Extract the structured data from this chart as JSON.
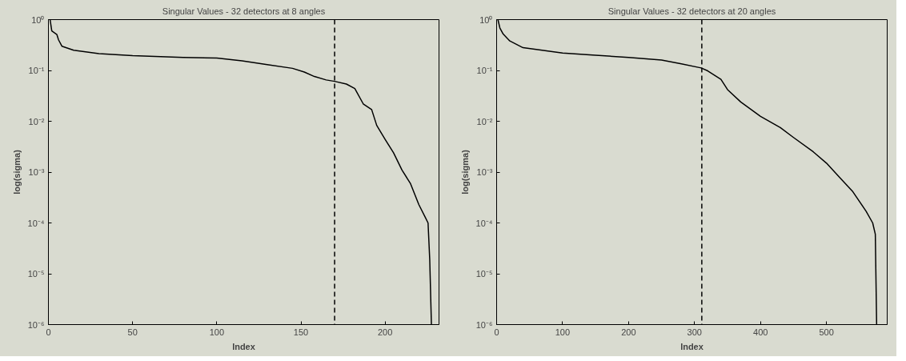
{
  "chart_data": [
    {
      "type": "line",
      "title": "Singular Values - 32 detectors at 8 angles",
      "xlabel": "Index",
      "ylabel": "log(sigma)",
      "log": "y",
      "grid": false,
      "line_style": "solid",
      "xlim": [
        0,
        232
      ],
      "xticks": [
        0,
        50,
        100,
        150,
        200
      ],
      "ylim": [
        1e-06,
        1
      ],
      "yticks": [
        {
          "value": 1e-06,
          "label": "10⁻⁶"
        },
        {
          "value": 1e-05,
          "label": "10⁻⁵"
        },
        {
          "value": 0.0001,
          "label": "10⁻⁴"
        },
        {
          "value": 0.001,
          "label": "10⁻³"
        },
        {
          "value": 0.01,
          "label": "10⁻²"
        },
        {
          "value": 0.1,
          "label": "10⁻¹"
        },
        {
          "value": 1,
          "label": "10⁰"
        }
      ],
      "ref_lines": [
        {
          "axis": "x",
          "value": 170,
          "line_style": "dashed",
          "color": "#000000"
        }
      ],
      "series": [
        {
          "color": "#000000",
          "x": [
            1,
            2,
            5,
            6,
            8,
            15,
            30,
            50,
            80,
            100,
            115,
            130,
            145,
            152,
            158,
            165,
            170,
            177,
            182,
            187,
            192,
            195,
            200,
            205,
            210,
            215,
            220,
            224,
            225.5,
            226.5,
            227.5
          ],
          "values": [
            1.0,
            0.6,
            0.51,
            0.4,
            0.3,
            0.25,
            0.215,
            0.195,
            0.18,
            0.175,
            0.155,
            0.13,
            0.11,
            0.093,
            0.076,
            0.065,
            0.061,
            0.054,
            0.044,
            0.022,
            0.017,
            0.0083,
            0.0044,
            0.0024,
            0.0011,
            0.0006,
            0.00023,
            0.000126,
            0.0001,
            1.9e-05,
            1e-06
          ]
        }
      ]
    },
    {
      "type": "line",
      "title": "Singular Values - 32 detectors at 20 angles",
      "xlabel": "Index",
      "ylabel": "log(sigma)",
      "log": "y",
      "grid": false,
      "line_style": "solid",
      "xlim": [
        0,
        592
      ],
      "xticks": [
        0,
        100,
        200,
        300,
        400,
        500
      ],
      "ylim": [
        1e-06,
        1
      ],
      "yticks": [
        {
          "value": 1e-06,
          "label": "10⁻⁶"
        },
        {
          "value": 1e-05,
          "label": "10⁻⁵"
        },
        {
          "value": 0.0001,
          "label": "10⁻⁴"
        },
        {
          "value": 0.001,
          "label": "10⁻³"
        },
        {
          "value": 0.01,
          "label": "10⁻²"
        },
        {
          "value": 0.1,
          "label": "10⁻¹"
        },
        {
          "value": 1,
          "label": "10⁰"
        }
      ],
      "ref_lines": [
        {
          "axis": "x",
          "value": 311,
          "line_style": "dashed",
          "color": "#000000"
        }
      ],
      "series": [
        {
          "color": "#000000",
          "x": [
            2,
            5,
            10,
            20,
            40,
            60,
            100,
            150,
            200,
            250,
            280,
            310,
            320,
            340,
            350,
            370,
            400,
            430,
            450,
            480,
            500,
            520,
            540,
            560,
            570,
            574,
            576
          ],
          "values": [
            1.0,
            0.68,
            0.52,
            0.38,
            0.28,
            0.26,
            0.22,
            0.2,
            0.18,
            0.16,
            0.135,
            0.112,
            0.098,
            0.067,
            0.042,
            0.024,
            0.0125,
            0.0075,
            0.0048,
            0.0025,
            0.0015,
            0.00078,
            0.00041,
            0.00017,
            0.0001,
            6e-05,
            1e-06
          ]
        }
      ]
    }
  ]
}
